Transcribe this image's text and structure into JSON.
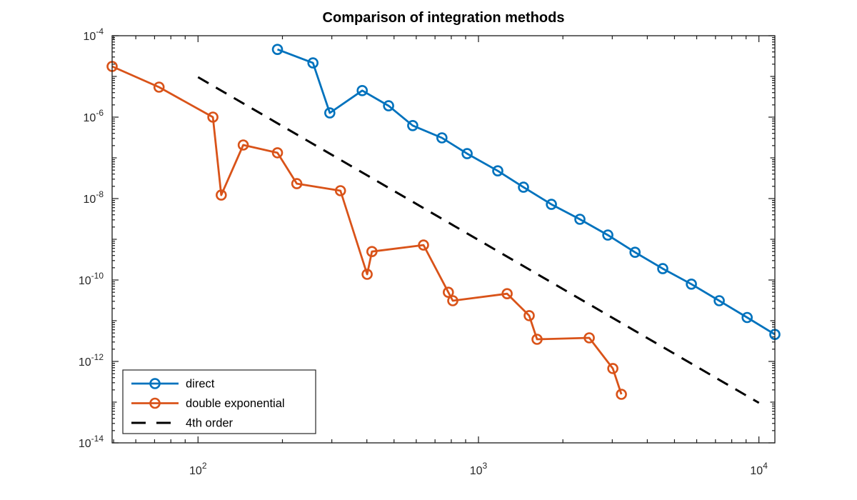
{
  "chart_data": {
    "type": "line",
    "scale": "log-log",
    "title": "Comparison of integration methods",
    "xlabel": "",
    "ylabel": "",
    "xlim": [
      49.4,
      11400
    ],
    "ylim": [
      1e-14,
      0.0001
    ],
    "x_major_ticks": [
      100,
      1000,
      10000
    ],
    "x_tick_exponents": [
      2,
      3,
      4
    ],
    "y_major_ticks": [
      0.0001,
      1e-06,
      1e-08,
      1e-10,
      1e-12,
      1e-14
    ],
    "y_tick_exponents": [
      -4,
      -6,
      -8,
      -10,
      -12,
      -14
    ],
    "grid": false,
    "legend_position": "southwest",
    "axes_color": "#1a1a1a",
    "tick_label_color": "#262626",
    "series": [
      {
        "name": "direct",
        "color": "#0072BD",
        "line_style": "solid",
        "marker": "circle",
        "x": [
          192,
          257,
          295,
          385,
          478,
          583,
          741,
          911,
          1172,
          1447,
          1820,
          2300,
          2892,
          3616,
          4541,
          5743,
          7222,
          9078,
          11400
        ],
        "y": [
          4.6e-05,
          2.15e-05,
          1.27e-06,
          4.5e-06,
          1.9e-06,
          6.2e-07,
          3.1e-07,
          1.27e-07,
          4.8e-08,
          1.9e-08,
          7.2e-09,
          3.1e-09,
          1.27e-09,
          4.8e-10,
          1.9e-10,
          7.9e-11,
          3.1e-11,
          1.2e-11,
          4.6e-12
        ]
      },
      {
        "name": "double exponential",
        "color": "#D95319",
        "line_style": "solid",
        "marker": "circle",
        "x": [
          49.4,
          72.6,
          113,
          121,
          145,
          192,
          225,
          322,
          401,
          417,
          637,
          781,
          810,
          1265,
          1517,
          1618,
          2483,
          3013,
          3233
        ],
        "y": [
          1.76e-05,
          5.45e-06,
          1e-06,
          1.22e-08,
          2.07e-07,
          1.33e-07,
          2.33e-08,
          1.56e-08,
          1.38e-10,
          5e-10,
          7.2e-10,
          5e-11,
          3.1e-11,
          4.6e-11,
          1.33e-11,
          3.5e-12,
          3.8e-12,
          6.7e-13,
          1.56e-13
        ]
      },
      {
        "name": "4th order",
        "color": "#000000",
        "line_style": "dashed",
        "marker": "none",
        "x": [
          100,
          10000
        ],
        "y": [
          9.6e-06,
          9.6e-14
        ]
      }
    ]
  }
}
